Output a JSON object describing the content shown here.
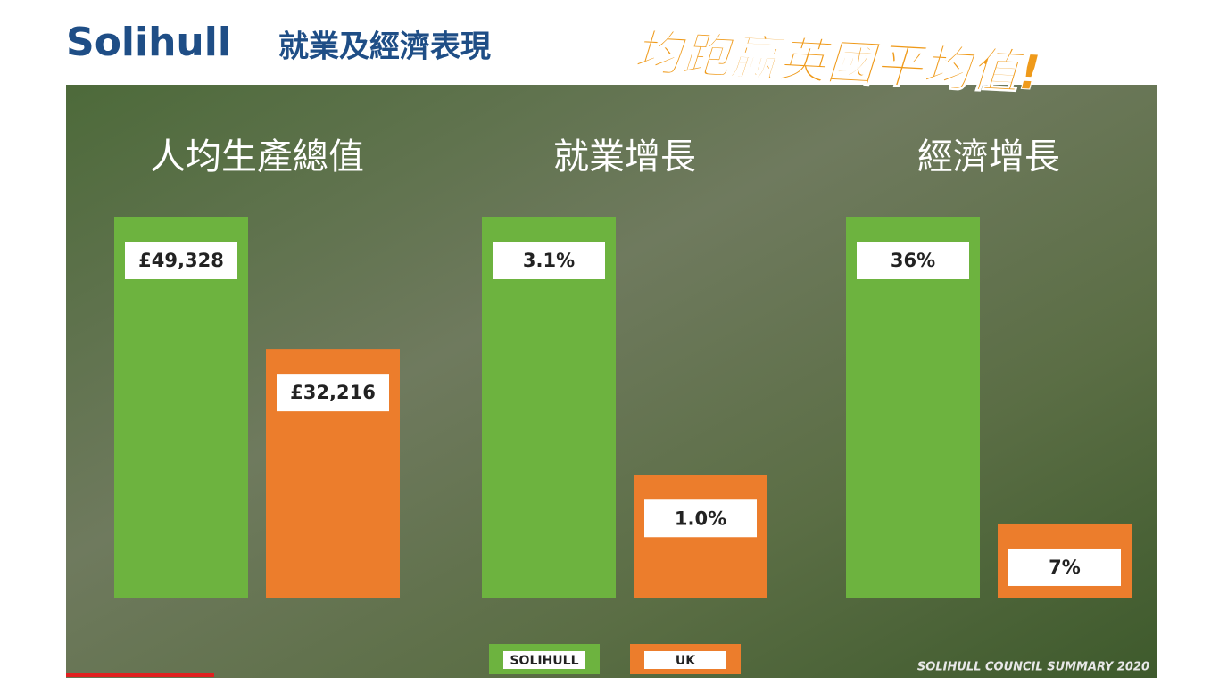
{
  "header": {
    "title": "Solihull",
    "subtitle": "就業及經濟表現",
    "slogan": "均跑贏英國平均值!"
  },
  "legend": {
    "labels": [
      "SOLIHULL",
      "UK"
    ],
    "colors": [
      "#6db33f",
      "#ec7d2c"
    ]
  },
  "chart_data": [
    {
      "type": "bar",
      "title": "人均生產總值",
      "values": [
        49328,
        32216
      ],
      "value_labels": [
        "£49,328",
        "£32,216"
      ]
    },
    {
      "type": "bar",
      "title": "就業增長",
      "values": [
        3.1,
        1.0
      ],
      "value_labels": [
        "3.1%",
        "1.0%"
      ]
    },
    {
      "type": "bar",
      "title": "經濟增長",
      "values": [
        36,
        7
      ],
      "value_labels": [
        "36%",
        "7%"
      ]
    }
  ],
  "footer": "SOLIHULL COUNCIL SUMMARY 2020"
}
